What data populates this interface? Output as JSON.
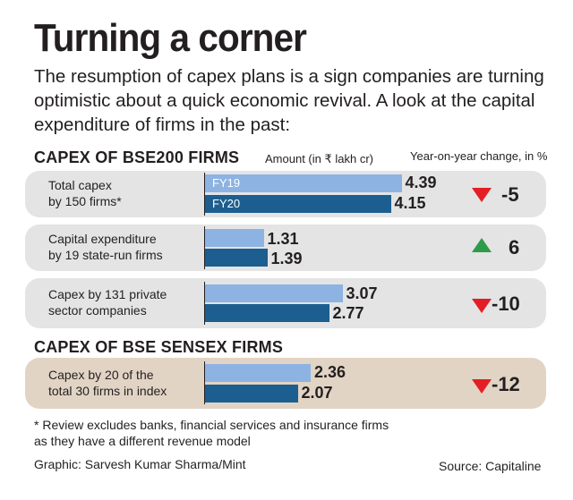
{
  "header": {
    "title": "Turning a corner",
    "intro": "The resumption of capex plans is a sign companies are turning optimistic about a quick economic revival. A look at the capital expenditure of firms in the past:"
  },
  "col_amount": "Amount (in ₹ lakh cr)",
  "col_change": "Year-on-year change, in %",
  "colors": {
    "fy19": "#8db3e2",
    "fy20": "#1c5e8f",
    "down": "#e31e24",
    "up": "#2e9b4a",
    "panel_grey": "#e4e4e5",
    "panel_tan": "#e2d4c5"
  },
  "chart_data": {
    "type": "bar",
    "orientation": "horizontal",
    "series": [
      {
        "name": "FY19"
      },
      {
        "name": "FY20"
      }
    ],
    "sections": [
      {
        "title": "CAPEX OF BSE200 FIRMS",
        "rows": [
          {
            "label1": "Total capex",
            "label2": "by 150 firms*",
            "fy19": 4.39,
            "fy20": 4.15,
            "fy19_text": "4.39",
            "fy20_text": "4.15",
            "change": -5,
            "change_text": "-5",
            "direction": "down"
          },
          {
            "label1": "Capital expenditure",
            "label2": "by 19 state-run firms",
            "fy19": 1.31,
            "fy20": 1.39,
            "fy19_text": "1.31",
            "fy20_text": "1.39",
            "change": 6,
            "change_text": "6",
            "direction": "up"
          },
          {
            "label1": "Capex by 131 private",
            "label2": "sector companies",
            "fy19": 3.07,
            "fy20": 2.77,
            "fy19_text": "3.07",
            "fy20_text": "2.77",
            "change": -10,
            "change_text": "-10",
            "direction": "down"
          }
        ]
      },
      {
        "title": "CAPEX OF BSE SENSEX FIRMS",
        "rows": [
          {
            "label1": "Capex by 20 of the",
            "label2": "total 30 firms in index",
            "fy19": 2.36,
            "fy20": 2.07,
            "fy19_text": "2.36",
            "fy20_text": "2.07",
            "change": -12,
            "change_text": "-12",
            "direction": "down"
          }
        ]
      }
    ]
  },
  "footer": {
    "note_line1": "* Review excludes banks, financial services and insurance firms",
    "note_line2": "as they have a different revenue model",
    "credit": "Graphic: Sarvesh Kumar Sharma/Mint",
    "source": "Source: Capitaline"
  }
}
